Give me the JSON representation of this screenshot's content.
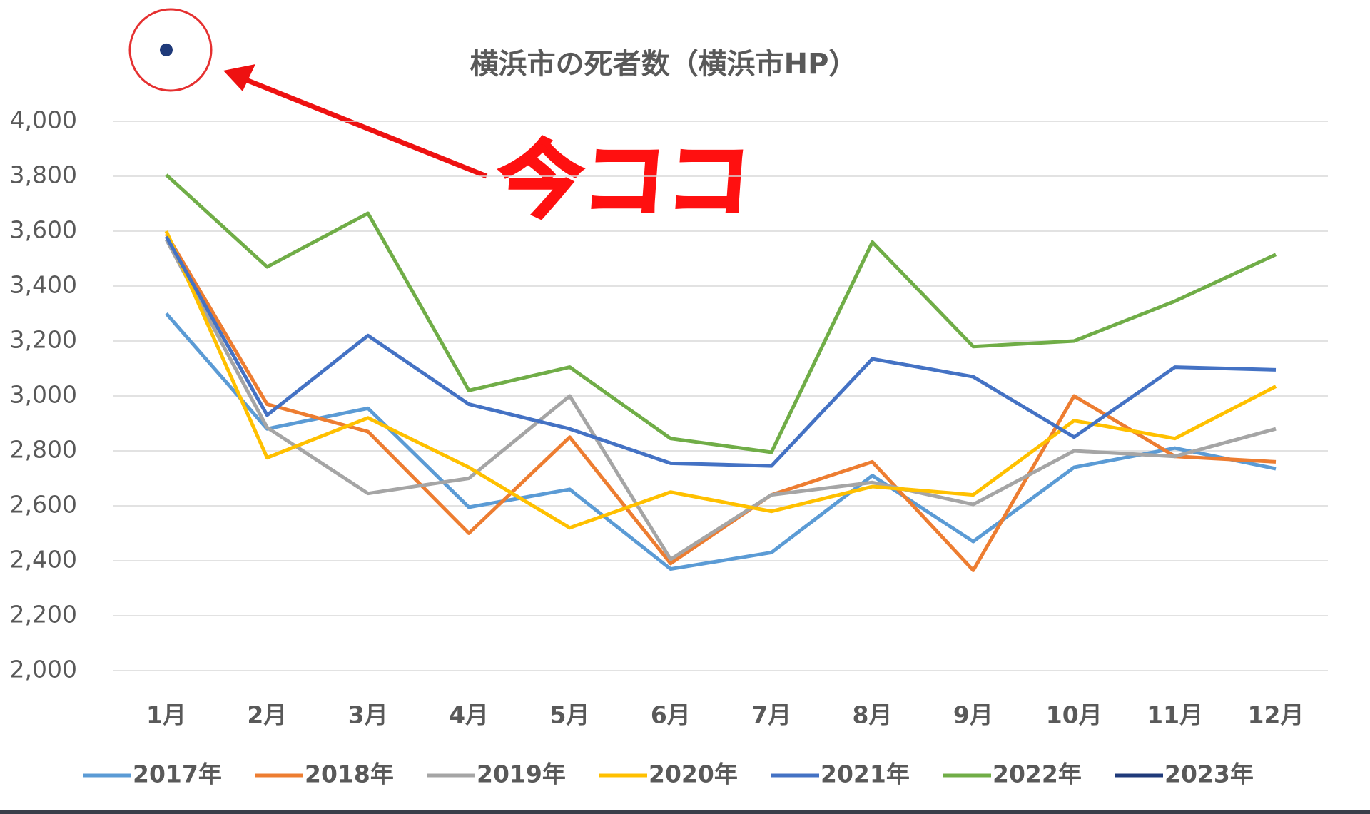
{
  "chart_data": {
    "type": "line",
    "title": "横浜市の死者数（横浜市HP）",
    "annotation": "今ココ",
    "categories": [
      "1月",
      "2月",
      "3月",
      "4月",
      "5月",
      "6月",
      "7月",
      "8月",
      "9月",
      "10月",
      "11月",
      "12月"
    ],
    "ylim": [
      2000,
      4400
    ],
    "yticks": [
      {
        "value": 2000,
        "label": "2,000"
      },
      {
        "value": 2200,
        "label": "2,200"
      },
      {
        "value": 2400,
        "label": "2,400"
      },
      {
        "value": 2600,
        "label": "2,600"
      },
      {
        "value": 2800,
        "label": "2,800"
      },
      {
        "value": 3000,
        "label": "3,000"
      },
      {
        "value": 3200,
        "label": "3,200"
      },
      {
        "value": 3400,
        "label": "3,400"
      },
      {
        "value": 3600,
        "label": "3,600"
      },
      {
        "value": 3800,
        "label": "3,800"
      },
      {
        "value": 4000,
        "label": "4,000"
      }
    ],
    "grid": true,
    "series": [
      {
        "name": "2017年",
        "color": "#5b9bd5",
        "values": [
          3300,
          2880,
          2955,
          2595,
          2660,
          2370,
          2430,
          2710,
          2470,
          2740,
          2810,
          2735
        ]
      },
      {
        "name": "2018年",
        "color": "#ed7d31",
        "values": [
          3590,
          2970,
          2870,
          2500,
          2850,
          2390,
          2640,
          2760,
          2365,
          3000,
          2780,
          2760
        ]
      },
      {
        "name": "2019年",
        "color": "#a5a5a5",
        "values": [
          3570,
          2885,
          2645,
          2700,
          3000,
          2405,
          2640,
          2685,
          2605,
          2800,
          2780,
          2880
        ]
      },
      {
        "name": "2020年",
        "color": "#ffc000",
        "values": [
          3600,
          2775,
          2920,
          2740,
          2520,
          2650,
          2580,
          2670,
          2640,
          2910,
          2845,
          3035
        ]
      },
      {
        "name": "2021年",
        "color": "#4472c4",
        "values": [
          3580,
          2930,
          3220,
          2970,
          2880,
          2755,
          2745,
          3135,
          3070,
          2850,
          3105,
          3095
        ]
      },
      {
        "name": "2022年",
        "color": "#70ad47",
        "values": [
          3805,
          3470,
          3665,
          3020,
          3105,
          2845,
          2795,
          3560,
          3180,
          3200,
          3345,
          3515
        ]
      },
      {
        "name": "2023年",
        "color": "#1f3a7a",
        "values": [
          4260,
          null,
          null,
          null,
          null,
          null,
          null,
          null,
          null,
          null,
          null,
          null
        ]
      }
    ]
  }
}
